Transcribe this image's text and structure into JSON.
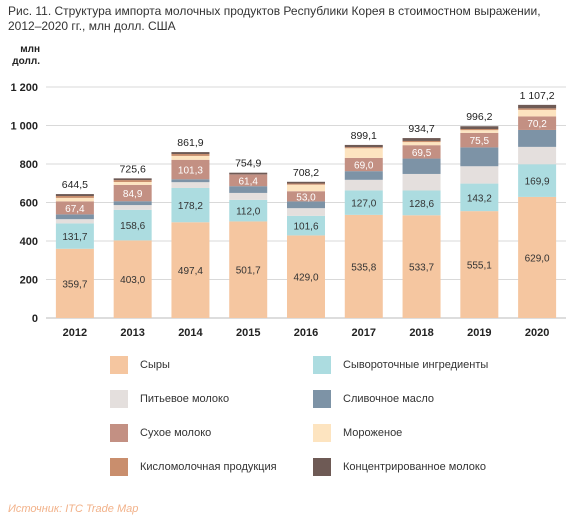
{
  "title": "Рис. 11. Структура импорта молочных продуктов Республики Корея в стоимостном выражении, 2012–2020 гг., млн долл. США",
  "source": "Источник: ITC Trade Map",
  "chart_data": {
    "type": "bar",
    "stacked": true,
    "ylabel": "млн долл.",
    "ylim": [
      0,
      1200
    ],
    "yticks": [
      "0",
      "200",
      "400",
      "600",
      "800",
      "1 000",
      "1 200"
    ],
    "grid": true,
    "legend_position": "bottom",
    "categories": [
      "2012",
      "2013",
      "2014",
      "2015",
      "2016",
      "2017",
      "2018",
      "2019",
      "2020"
    ],
    "totals": [
      "644,5",
      "725,6",
      "861,9",
      "754,9",
      "708,2",
      "899,1",
      "934,7",
      "996,2",
      "1 107,2"
    ],
    "series": [
      {
        "name": "Сыры",
        "color": "#f5c6a0",
        "values": [
          359.7,
          403.0,
          497.4,
          501.7,
          429.0,
          535.8,
          533.7,
          555.1,
          629.0
        ],
        "labels": [
          "359,7",
          "403,0",
          "497,4",
          "501,7",
          "429,0",
          "535,8",
          "533,7",
          "555,1",
          "629,0"
        ]
      },
      {
        "name": "Сывороточные ингредиенты",
        "color": "#acdce0",
        "values": [
          131.7,
          158.6,
          178.2,
          112.0,
          101.6,
          127.0,
          128.6,
          143.2,
          169.9
        ],
        "labels": [
          "131,7",
          "158,6",
          "178,2",
          "112,0",
          "101,6",
          "127,0",
          "128,6",
          "143,2",
          "169,9"
        ]
      },
      {
        "name": "Питьевое молоко",
        "color": "#e4dfdd",
        "values": [
          22,
          25,
          30,
          36,
          40,
          55,
          86,
          90,
          90
        ]
      },
      {
        "name": "Сливочное масло",
        "color": "#7d93a6",
        "values": [
          25,
          20,
          15,
          35,
          35,
          45,
          80,
          98,
          88
        ]
      },
      {
        "name": "Сухое молоко",
        "color": "#c39083",
        "values": [
          67.4,
          84.9,
          101.3,
          61.4,
          53.0,
          69.0,
          69.5,
          75.5,
          70.2
        ],
        "labels": [
          "67,4",
          "84,9",
          "101,3",
          "61,4",
          "53,0",
          "69,0",
          "69,5",
          "75,5",
          "70,2"
        ]
      },
      {
        "name": "Мороженое",
        "color": "#fde4c0",
        "values": [
          18,
          15,
          20,
          0,
          34,
          50,
          16,
          14,
          34
        ]
      },
      {
        "name": "Кисломолочная продукция",
        "color": "#c98e6d",
        "values": [
          10,
          10,
          10,
          0,
          6,
          6,
          6,
          6,
          8
        ]
      },
      {
        "name": "Концентрированное молоко",
        "color": "#6e5a55",
        "values": [
          10,
          9,
          10,
          8.8,
          9,
          11.3,
          14.9,
          14.4,
          18.1
        ]
      }
    ]
  }
}
